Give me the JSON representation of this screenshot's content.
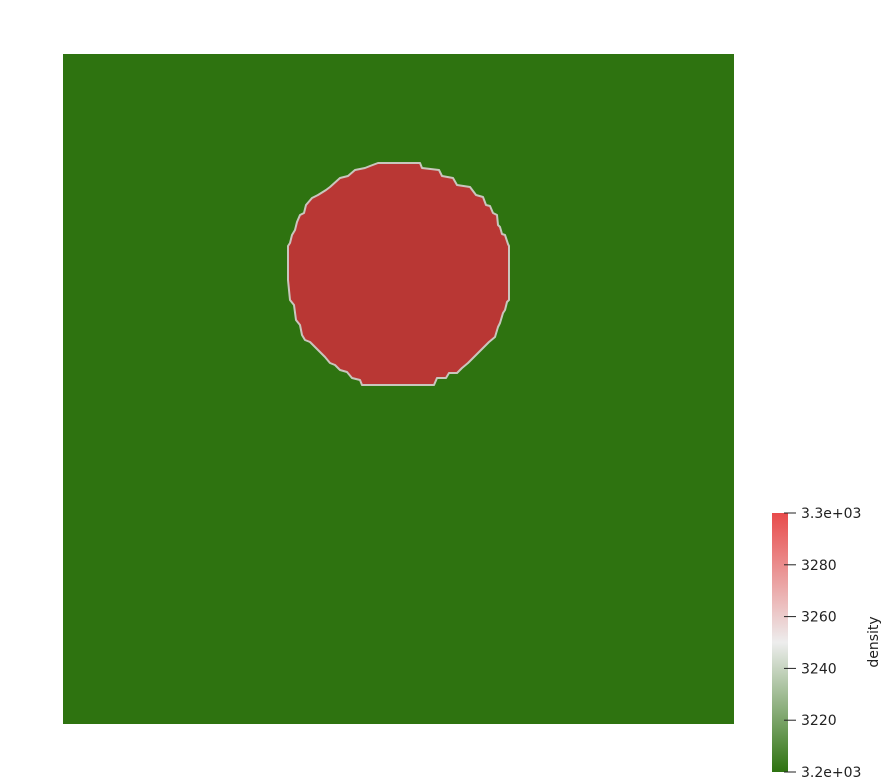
{
  "chart_data": {
    "type": "heatmap",
    "field": "density",
    "colorbar": {
      "title": "density",
      "range": [
        3200,
        3300
      ],
      "tick_labels": [
        "3.3e+03",
        "3280",
        "3260",
        "3240",
        "3220",
        "3.2e+03"
      ],
      "tick_values": [
        3300,
        3280,
        3260,
        3240,
        3220,
        3200
      ],
      "colormap": [
        {
          "value": 3200,
          "color": "#2e7310"
        },
        {
          "value": 3250,
          "color": "#ededed"
        },
        {
          "value": 3300,
          "color": "#e84b4b"
        }
      ]
    },
    "regions": [
      {
        "name": "background",
        "value": 3200,
        "color": "#2e7310"
      },
      {
        "name": "circular-inclusion",
        "value": 3300,
        "color": "#b93734",
        "edge_color": "#c9c6bd"
      }
    ],
    "legend_position": "bottom-right"
  }
}
